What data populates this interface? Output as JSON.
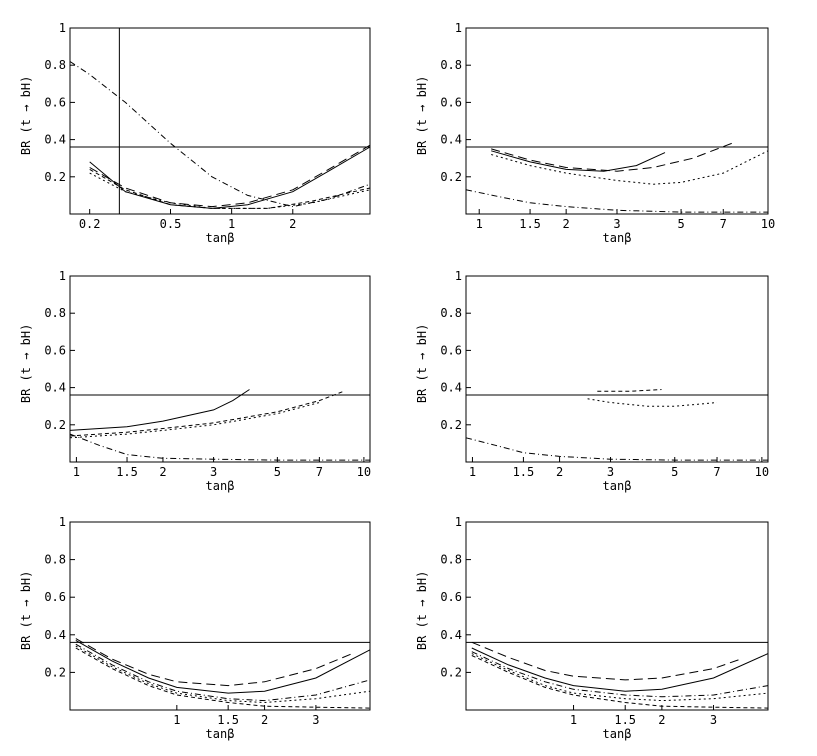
{
  "figure": {
    "ylabel": "BR (t → bH)",
    "xlabel": "tanβ"
  },
  "colors": {
    "ink": "#000000",
    "background": "#ffffff"
  },
  "chart_data": [
    {
      "type": "line",
      "panel": "top-left",
      "xscale": "log",
      "xlim": [
        0.16,
        4.8
      ],
      "ylim": [
        0,
        1
      ],
      "xticks": [
        0.2,
        0.5,
        1,
        2
      ],
      "xticklabels": [
        "0.2",
        "0.5",
        "1",
        "2"
      ],
      "yticks": [
        0.2,
        0.4,
        0.6,
        0.8,
        1
      ],
      "yticklabels": [
        "0.2",
        "0.4",
        "0.6",
        "0.8",
        "1"
      ],
      "hlines": [
        0.36
      ],
      "vlines": [
        0.28
      ],
      "series": [
        {
          "name": "solid",
          "dash": "",
          "points": [
            [
              0.2,
              0.28
            ],
            [
              0.3,
              0.12
            ],
            [
              0.5,
              0.05
            ],
            [
              0.8,
              0.03
            ],
            [
              1.2,
              0.05
            ],
            [
              2,
              0.12
            ],
            [
              3,
              0.23
            ],
            [
              4.8,
              0.36
            ]
          ]
        },
        {
          "name": "long-dash",
          "dash": "9,5",
          "points": [
            [
              0.2,
              0.25
            ],
            [
              0.3,
              0.14
            ],
            [
              0.5,
              0.06
            ],
            [
              0.8,
              0.04
            ],
            [
              1.2,
              0.06
            ],
            [
              2,
              0.13
            ],
            [
              3,
              0.24
            ],
            [
              4.8,
              0.37
            ]
          ]
        },
        {
          "name": "dash-dot",
          "dash": "6,3,1,3",
          "points": [
            [
              0.16,
              0.82
            ],
            [
              0.2,
              0.75
            ],
            [
              0.3,
              0.6
            ],
            [
              0.5,
              0.38
            ],
            [
              0.8,
              0.2
            ],
            [
              1.2,
              0.1
            ],
            [
              2,
              0.04
            ],
            [
              3,
              0.08
            ],
            [
              4.8,
              0.16
            ]
          ]
        },
        {
          "name": "dotted",
          "dash": "2,3",
          "points": [
            [
              0.2,
              0.22
            ],
            [
              0.3,
              0.12
            ],
            [
              0.5,
              0.06
            ],
            [
              0.8,
              0.03
            ],
            [
              1.5,
              0.03
            ],
            [
              2.5,
              0.06
            ],
            [
              4.8,
              0.13
            ]
          ]
        },
        {
          "name": "short-dash",
          "dash": "4,3",
          "points": [
            [
              0.2,
              0.24
            ],
            [
              0.3,
              0.13
            ],
            [
              0.5,
              0.05
            ],
            [
              0.8,
              0.03
            ],
            [
              1.5,
              0.03
            ],
            [
              2.5,
              0.07
            ],
            [
              4.8,
              0.14
            ]
          ]
        }
      ]
    },
    {
      "type": "line",
      "panel": "top-right",
      "xscale": "log",
      "xlim": [
        0.9,
        10
      ],
      "ylim": [
        0,
        1
      ],
      "xticks": [
        1,
        1.5,
        2,
        3,
        5,
        7,
        10
      ],
      "xticklabels": [
        "1",
        "1.5",
        "2",
        "3",
        "5",
        "7",
        "10"
      ],
      "yticks": [
        0.2,
        0.4,
        0.6,
        0.8,
        1
      ],
      "yticklabels": [
        "0.2",
        "0.4",
        "0.6",
        "0.8",
        "1"
      ],
      "hlines": [
        0.36
      ],
      "vlines": [],
      "series": [
        {
          "name": "solid",
          "dash": "",
          "points": [
            [
              1.1,
              0.34
            ],
            [
              1.5,
              0.28
            ],
            [
              2,
              0.24
            ],
            [
              2.7,
              0.23
            ],
            [
              3.5,
              0.26
            ],
            [
              4.4,
              0.33
            ]
          ]
        },
        {
          "name": "long-dash",
          "dash": "9,5",
          "points": [
            [
              1.1,
              0.35
            ],
            [
              1.5,
              0.29
            ],
            [
              2,
              0.25
            ],
            [
              3,
              0.23
            ],
            [
              4,
              0.25
            ],
            [
              5.5,
              0.3
            ],
            [
              7.5,
              0.38
            ]
          ]
        },
        {
          "name": "dotted",
          "dash": "2,3",
          "points": [
            [
              1.1,
              0.32
            ],
            [
              1.5,
              0.26
            ],
            [
              2,
              0.22
            ],
            [
              3,
              0.18
            ],
            [
              4,
              0.16
            ],
            [
              5,
              0.17
            ],
            [
              7,
              0.22
            ],
            [
              10,
              0.34
            ]
          ]
        },
        {
          "name": "dash-dot",
          "dash": "6,3,1,3",
          "points": [
            [
              0.9,
              0.13
            ],
            [
              1.2,
              0.09
            ],
            [
              1.5,
              0.06
            ],
            [
              2,
              0.04
            ],
            [
              3,
              0.02
            ],
            [
              5,
              0.01
            ],
            [
              10,
              0.01
            ]
          ]
        }
      ]
    },
    {
      "type": "line",
      "panel": "middle-left",
      "xscale": "log",
      "xlim": [
        0.95,
        10.5
      ],
      "ylim": [
        0,
        1
      ],
      "xticks": [
        1,
        1.5,
        2,
        3,
        5,
        7,
        10
      ],
      "xticklabels": [
        "1",
        "1.5",
        "2",
        "3",
        "5",
        "7",
        "10"
      ],
      "yticks": [
        0.2,
        0.4,
        0.6,
        0.8,
        1
      ],
      "yticklabels": [
        "0.2",
        "0.4",
        "0.6",
        "0.8",
        "1"
      ],
      "hlines": [
        0.36
      ],
      "vlines": [],
      "series": [
        {
          "name": "solid",
          "dash": "",
          "points": [
            [
              0.95,
              0.17
            ],
            [
              1.5,
              0.19
            ],
            [
              2,
              0.22
            ],
            [
              3,
              0.28
            ],
            [
              3.5,
              0.33
            ],
            [
              4,
              0.39
            ]
          ]
        },
        {
          "name": "short-dash",
          "dash": "4,3",
          "points": [
            [
              0.95,
              0.14
            ],
            [
              1.5,
              0.16
            ],
            [
              2,
              0.18
            ],
            [
              3,
              0.21
            ],
            [
              5,
              0.27
            ],
            [
              7,
              0.33
            ],
            [
              8.5,
              0.38
            ]
          ]
        },
        {
          "name": "dotted",
          "dash": "2,3",
          "points": [
            [
              0.95,
              0.13
            ],
            [
              1.5,
              0.15
            ],
            [
              2,
              0.17
            ],
            [
              3,
              0.2
            ],
            [
              5,
              0.26
            ],
            [
              7,
              0.32
            ]
          ]
        },
        {
          "name": "dash-dot",
          "dash": "6,3,1,3",
          "points": [
            [
              0.95,
              0.15
            ],
            [
              1.2,
              0.09
            ],
            [
              1.5,
              0.04
            ],
            [
              2,
              0.02
            ],
            [
              3,
              0.015
            ],
            [
              5,
              0.01
            ],
            [
              10.5,
              0.01
            ]
          ]
        }
      ]
    },
    {
      "type": "line",
      "panel": "middle-right",
      "xscale": "log",
      "xlim": [
        0.95,
        10.5
      ],
      "ylim": [
        0,
        1
      ],
      "xticks": [
        1,
        1.5,
        2,
        3,
        5,
        7,
        10
      ],
      "xticklabels": [
        "1",
        "1.5",
        "2",
        "3",
        "5",
        "7",
        "10"
      ],
      "yticks": [
        0.2,
        0.4,
        0.6,
        0.8,
        1
      ],
      "yticklabels": [
        "0.2",
        "0.4",
        "0.6",
        "0.8",
        "1"
      ],
      "hlines": [
        0.36
      ],
      "vlines": [],
      "series": [
        {
          "name": "short-dash",
          "dash": "4,3",
          "points": [
            [
              2.7,
              0.38
            ],
            [
              3.5,
              0.38
            ],
            [
              4.5,
              0.39
            ]
          ]
        },
        {
          "name": "dotted",
          "dash": "2,3",
          "points": [
            [
              2.5,
              0.34
            ],
            [
              3,
              0.32
            ],
            [
              4,
              0.3
            ],
            [
              5,
              0.3
            ],
            [
              6,
              0.31
            ],
            [
              7,
              0.32
            ]
          ]
        },
        {
          "name": "dash-dot",
          "dash": "6,3,1,3",
          "points": [
            [
              0.95,
              0.13
            ],
            [
              1.2,
              0.09
            ],
            [
              1.5,
              0.05
            ],
            [
              2,
              0.03
            ],
            [
              3,
              0.015
            ],
            [
              5,
              0.01
            ],
            [
              10.5,
              0.01
            ]
          ]
        }
      ]
    },
    {
      "type": "line",
      "panel": "bottom-left",
      "xscale": "log",
      "xlim": [
        0.43,
        4.6
      ],
      "ylim": [
        0,
        1
      ],
      "xticks": [
        1,
        1.5,
        2,
        3
      ],
      "xticklabels": [
        "1",
        "1.5",
        "2",
        "3"
      ],
      "yticks": [
        0.2,
        0.4,
        0.6,
        0.8,
        1
      ],
      "yticklabels": [
        "0.2",
        "0.4",
        "0.6",
        "0.8",
        "1"
      ],
      "hlines": [
        0.36
      ],
      "vlines": [],
      "series": [
        {
          "name": "solid",
          "dash": "",
          "points": [
            [
              0.45,
              0.37
            ],
            [
              0.6,
              0.26
            ],
            [
              0.8,
              0.17
            ],
            [
              1,
              0.12
            ],
            [
              1.5,
              0.09
            ],
            [
              2,
              0.1
            ],
            [
              3,
              0.17
            ],
            [
              4.6,
              0.32
            ]
          ]
        },
        {
          "name": "long-dash",
          "dash": "9,5",
          "points": [
            [
              0.45,
              0.38
            ],
            [
              0.6,
              0.27
            ],
            [
              0.8,
              0.19
            ],
            [
              1,
              0.15
            ],
            [
              1.5,
              0.13
            ],
            [
              2,
              0.15
            ],
            [
              3,
              0.22
            ],
            [
              4,
              0.3
            ]
          ]
        },
        {
          "name": "dash-dot",
          "dash": "6,3,1,3",
          "points": [
            [
              0.45,
              0.35
            ],
            [
              0.6,
              0.24
            ],
            [
              0.8,
              0.15
            ],
            [
              1,
              0.1
            ],
            [
              1.5,
              0.06
            ],
            [
              2,
              0.05
            ],
            [
              3,
              0.08
            ],
            [
              4.6,
              0.16
            ]
          ]
        },
        {
          "name": "dotted",
          "dash": "2,3",
          "points": [
            [
              0.45,
              0.34
            ],
            [
              0.6,
              0.23
            ],
            [
              0.8,
              0.14
            ],
            [
              1,
              0.09
            ],
            [
              1.5,
              0.05
            ],
            [
              2,
              0.04
            ],
            [
              3,
              0.06
            ],
            [
              4.6,
              0.1
            ]
          ]
        },
        {
          "name": "short-dash",
          "dash": "4,3",
          "points": [
            [
              0.45,
              0.33
            ],
            [
              0.6,
              0.22
            ],
            [
              0.8,
              0.13
            ],
            [
              1,
              0.08
            ],
            [
              1.5,
              0.04
            ],
            [
              2,
              0.02
            ],
            [
              3,
              0.015
            ],
            [
              4.6,
              0.01
            ]
          ]
        }
      ]
    },
    {
      "type": "line",
      "panel": "bottom-right",
      "xscale": "log",
      "xlim": [
        0.43,
        4.6
      ],
      "ylim": [
        0,
        1
      ],
      "xticks": [
        1,
        1.5,
        2,
        3
      ],
      "xticklabels": [
        "1",
        "1.5",
        "2",
        "3"
      ],
      "yticks": [
        0.2,
        0.4,
        0.6,
        0.8,
        1
      ],
      "yticklabels": [
        "0.2",
        "0.4",
        "0.6",
        "0.8",
        "1"
      ],
      "hlines": [
        0.36
      ],
      "vlines": [],
      "series": [
        {
          "name": "solid",
          "dash": "",
          "points": [
            [
              0.45,
              0.33
            ],
            [
              0.6,
              0.24
            ],
            [
              0.8,
              0.17
            ],
            [
              1,
              0.13
            ],
            [
              1.5,
              0.1
            ],
            [
              2,
              0.11
            ],
            [
              3,
              0.17
            ],
            [
              4.6,
              0.3
            ]
          ]
        },
        {
          "name": "long-dash",
          "dash": "9,5",
          "points": [
            [
              0.45,
              0.36
            ],
            [
              0.6,
              0.28
            ],
            [
              0.8,
              0.21
            ],
            [
              1,
              0.18
            ],
            [
              1.5,
              0.16
            ],
            [
              2,
              0.17
            ],
            [
              3,
              0.22
            ],
            [
              3.7,
              0.27
            ]
          ]
        },
        {
          "name": "dash-dot",
          "dash": "6,3,1,3",
          "points": [
            [
              0.45,
              0.31
            ],
            [
              0.6,
              0.22
            ],
            [
              0.8,
              0.15
            ],
            [
              1,
              0.11
            ],
            [
              1.5,
              0.08
            ],
            [
              2,
              0.07
            ],
            [
              3,
              0.08
            ],
            [
              4.6,
              0.13
            ]
          ]
        },
        {
          "name": "dotted",
          "dash": "2,3",
          "points": [
            [
              0.45,
              0.3
            ],
            [
              0.6,
              0.21
            ],
            [
              0.8,
              0.13
            ],
            [
              1,
              0.09
            ],
            [
              1.5,
              0.06
            ],
            [
              2,
              0.05
            ],
            [
              3,
              0.06
            ],
            [
              4.6,
              0.09
            ]
          ]
        },
        {
          "name": "short-dash",
          "dash": "4,3",
          "points": [
            [
              0.45,
              0.29
            ],
            [
              0.6,
              0.2
            ],
            [
              0.8,
              0.12
            ],
            [
              1,
              0.08
            ],
            [
              1.5,
              0.04
            ],
            [
              2,
              0.02
            ],
            [
              3,
              0.015
            ],
            [
              4.6,
              0.01
            ]
          ]
        }
      ]
    }
  ]
}
